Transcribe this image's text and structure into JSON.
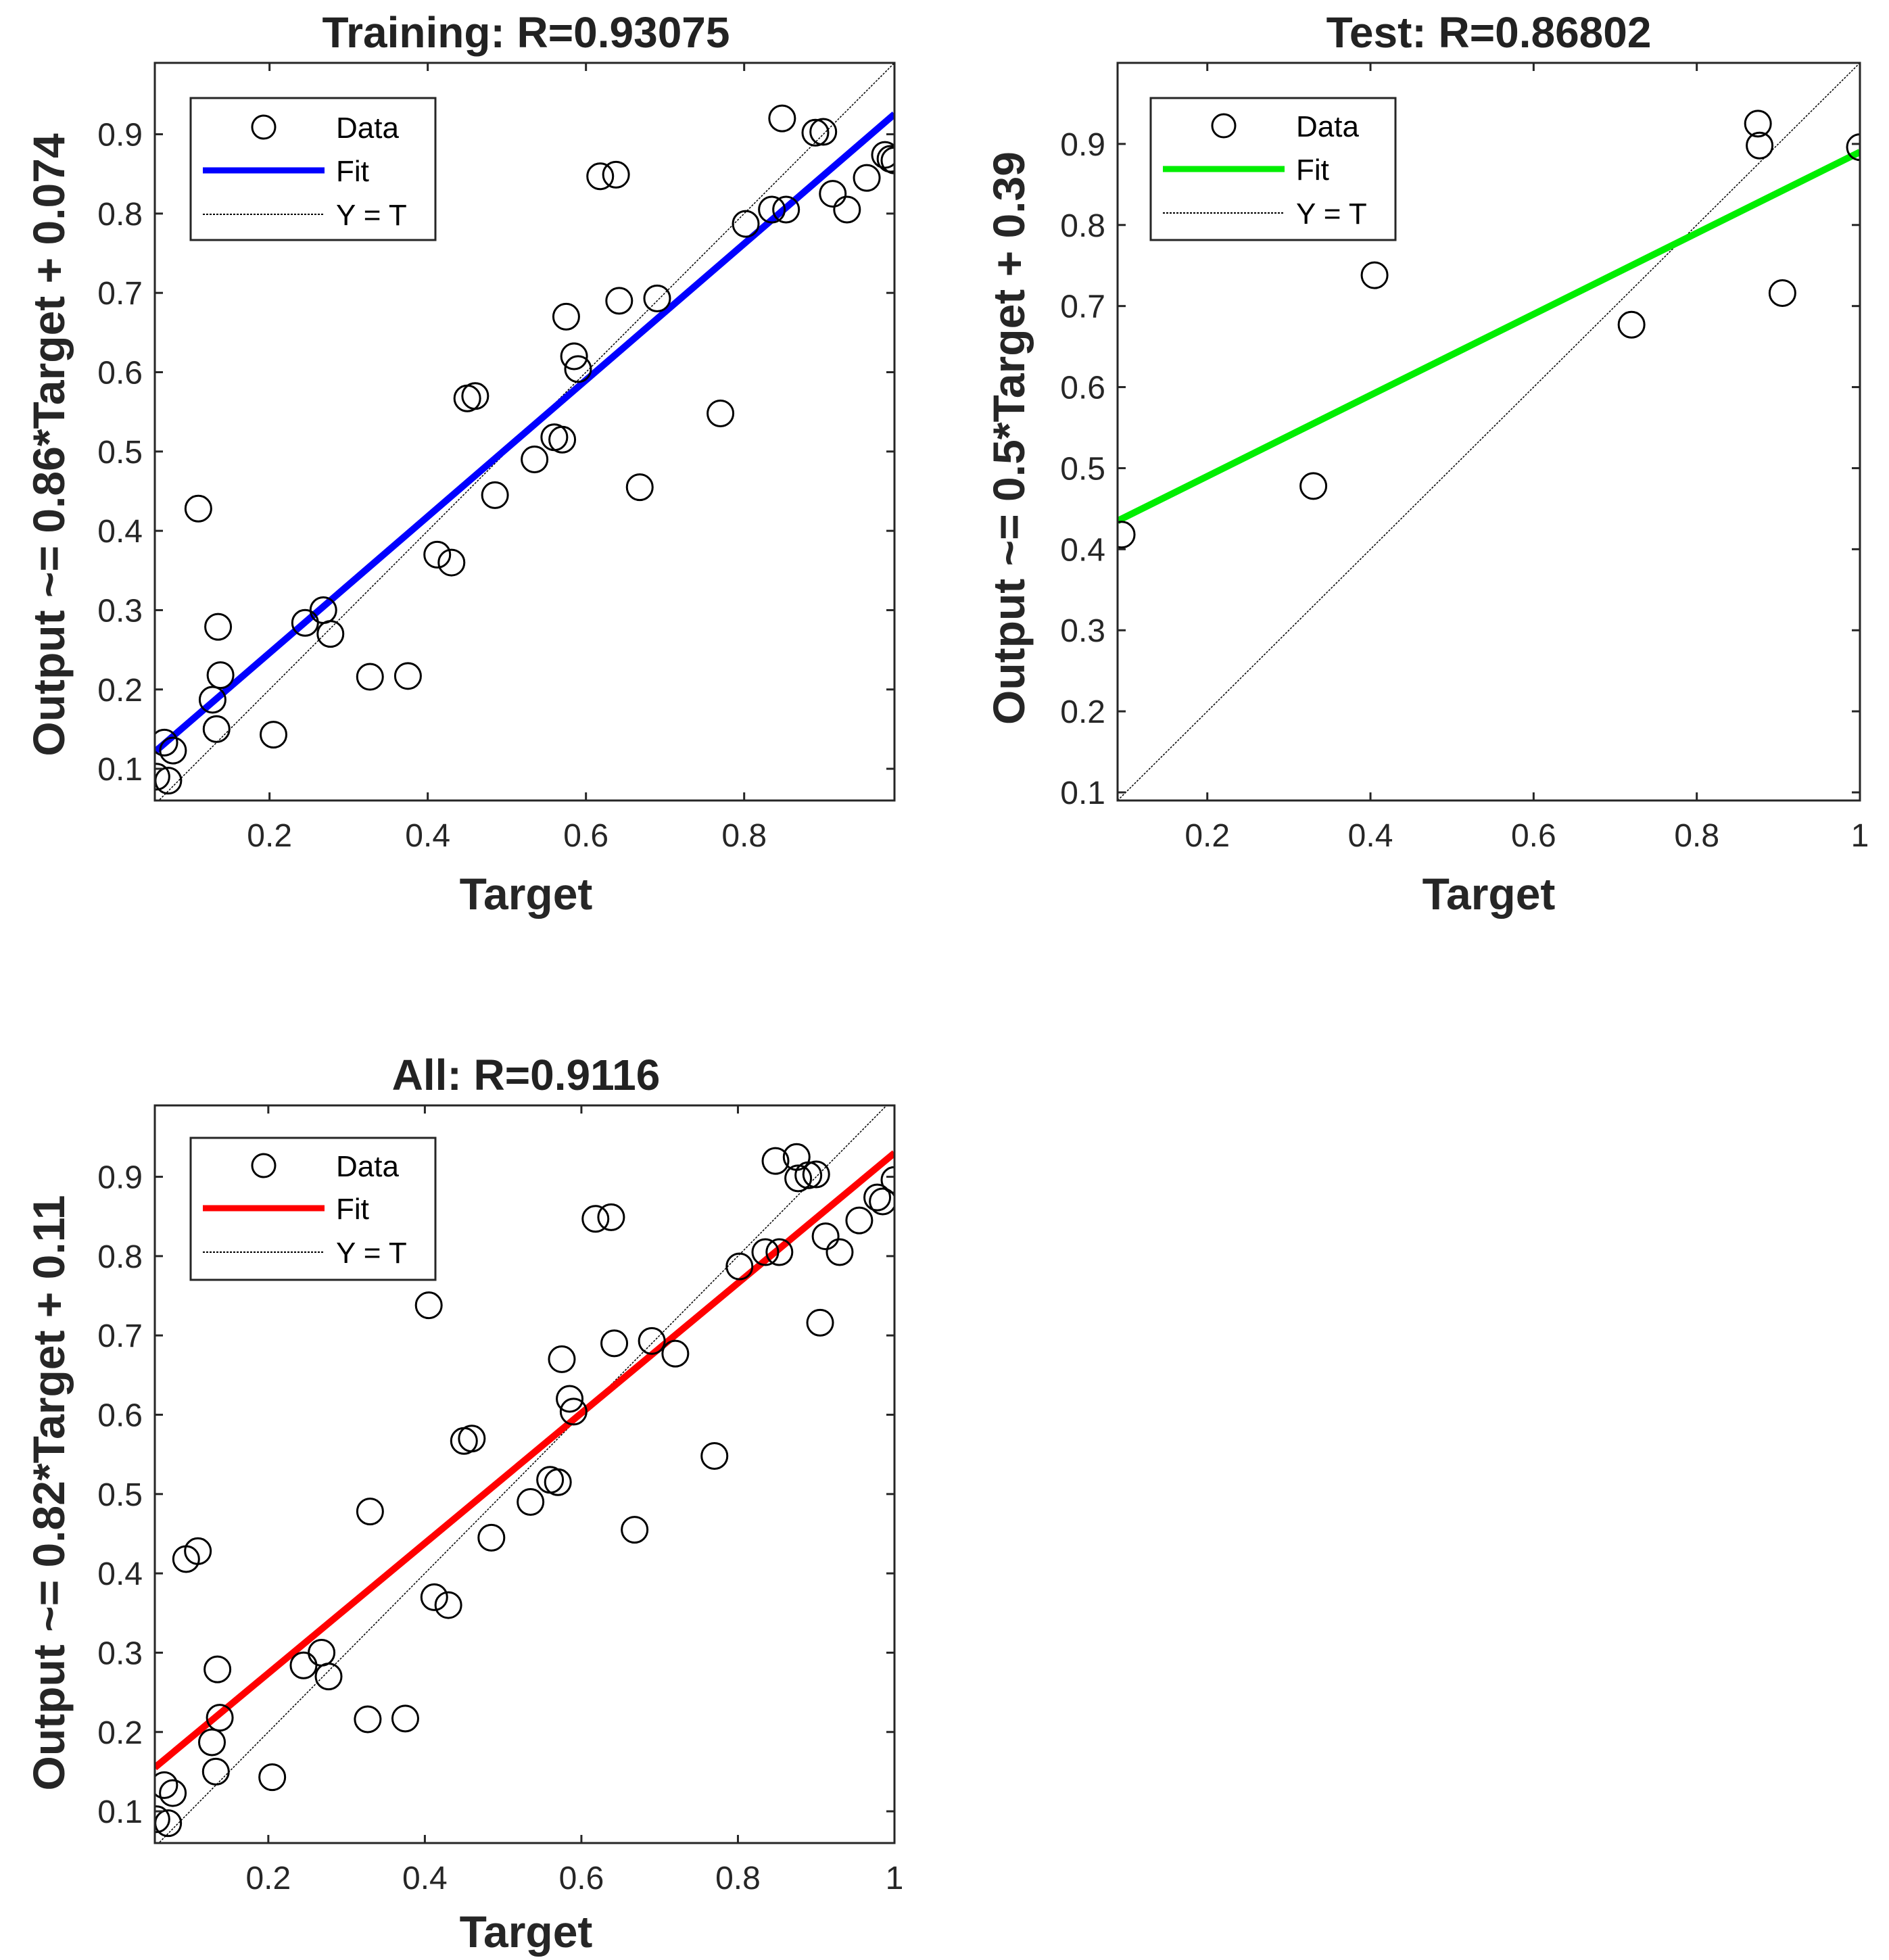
{
  "chart_data": [
    {
      "type": "scatter",
      "title": "Training: R=0.93075",
      "xlabel": "Target",
      "ylabel": "Output ~= 0.86*Target + 0.074",
      "xlim": [
        0.055,
        0.99
      ],
      "ylim": [
        0.06,
        0.99
      ],
      "xticks": [
        0.2,
        0.4,
        0.6,
        0.8
      ],
      "yticks": [
        0.1,
        0.2,
        0.3,
        0.4,
        0.5,
        0.6,
        0.7,
        0.8,
        0.9
      ],
      "xtick_labels": [
        "0.2",
        "0.4",
        "0.6",
        "0.8"
      ],
      "ytick_labels": [
        "0.1",
        "0.2",
        "0.3",
        "0.4",
        "0.5",
        "0.6",
        "0.7",
        "0.8",
        "0.9"
      ],
      "fit": {
        "slope": 0.86,
        "intercept": 0.074,
        "color": "#0000ff"
      },
      "legend": {
        "location": "top-left",
        "entries": [
          "Data",
          "Fit",
          "Y = T"
        ]
      },
      "series": [
        {
          "name": "Data",
          "x": [
            0.057,
            0.067,
            0.072,
            0.078,
            0.11,
            0.128,
            0.133,
            0.135,
            0.138,
            0.205,
            0.245,
            0.268,
            0.277,
            0.327,
            0.375,
            0.412,
            0.43,
            0.45,
            0.46,
            0.485,
            0.535,
            0.56,
            0.57,
            0.575,
            0.585,
            0.59,
            0.618,
            0.638,
            0.642,
            0.668,
            0.69,
            0.77,
            0.802,
            0.835,
            0.848,
            0.853,
            0.89,
            0.9,
            0.912,
            0.93,
            0.955,
            0.978,
            0.985,
            0.99
          ],
          "y": [
            0.09,
            0.133,
            0.085,
            0.123,
            0.428,
            0.187,
            0.15,
            0.279,
            0.218,
            0.143,
            0.284,
            0.3,
            0.27,
            0.216,
            0.217,
            0.37,
            0.36,
            0.567,
            0.57,
            0.445,
            0.49,
            0.518,
            0.515,
            0.67,
            0.62,
            0.604,
            0.847,
            0.849,
            0.69,
            0.455,
            0.693,
            0.548,
            0.787,
            0.805,
            0.92,
            0.805,
            0.902,
            0.903,
            0.825,
            0.805,
            0.845,
            0.874,
            0.869,
            0.867
          ]
        }
      ]
    },
    {
      "type": "scatter",
      "title": "Test: R=0.86802",
      "xlabel": "Target",
      "ylabel": "Output ~= 0.5*Target + 0.39",
      "xlim": [
        0.09,
        1.0
      ],
      "ylim": [
        0.09,
        1.0
      ],
      "xticks": [
        0.2,
        0.4,
        0.6,
        0.8,
        1.0
      ],
      "yticks": [
        0.1,
        0.2,
        0.3,
        0.4,
        0.5,
        0.6,
        0.7,
        0.8,
        0.9
      ],
      "xtick_labels": [
        "0.2",
        "0.4",
        "0.6",
        "0.8",
        "1"
      ],
      "ytick_labels": [
        "0.1",
        "0.2",
        "0.3",
        "0.4",
        "0.5",
        "0.6",
        "0.7",
        "0.8",
        "0.9"
      ],
      "fit": {
        "slope": 0.5,
        "intercept": 0.39,
        "color": "#00ee00"
      },
      "legend": {
        "location": "top-left",
        "entries": [
          "Data",
          "Fit",
          "Y = T"
        ]
      },
      "series": [
        {
          "name": "Data",
          "x": [
            0.095,
            0.33,
            0.405,
            0.72,
            0.875,
            0.877,
            0.905,
            1.0
          ],
          "y": [
            0.418,
            0.478,
            0.738,
            0.677,
            0.925,
            0.898,
            0.716,
            0.896
          ]
        }
      ]
    },
    {
      "type": "scatter",
      "title": "All: R=0.9116",
      "xlabel": "Target",
      "ylabel": "Output ~= 0.82*Target + 0.11",
      "xlim": [
        0.055,
        1.0
      ],
      "ylim": [
        0.06,
        0.99
      ],
      "xticks": [
        0.2,
        0.4,
        0.6,
        0.8,
        1.0
      ],
      "yticks": [
        0.1,
        0.2,
        0.3,
        0.4,
        0.5,
        0.6,
        0.7,
        0.8,
        0.9
      ],
      "xtick_labels": [
        "0.2",
        "0.4",
        "0.6",
        "0.8",
        "1"
      ],
      "ytick_labels": [
        "0.1",
        "0.2",
        "0.3",
        "0.4",
        "0.5",
        "0.6",
        "0.7",
        "0.8",
        "0.9"
      ],
      "fit": {
        "slope": 0.82,
        "intercept": 0.11,
        "color": "#ff0000"
      },
      "legend": {
        "location": "top-left",
        "entries": [
          "Data",
          "Fit",
          "Y = T"
        ]
      },
      "series": [
        {
          "name": "Data",
          "x": [
            0.057,
            0.067,
            0.072,
            0.078,
            0.095,
            0.11,
            0.128,
            0.133,
            0.135,
            0.138,
            0.205,
            0.245,
            0.268,
            0.277,
            0.327,
            0.33,
            0.375,
            0.405,
            0.412,
            0.43,
            0.45,
            0.46,
            0.485,
            0.535,
            0.56,
            0.57,
            0.575,
            0.585,
            0.59,
            0.618,
            0.638,
            0.642,
            0.668,
            0.69,
            0.72,
            0.77,
            0.802,
            0.835,
            0.848,
            0.853,
            0.875,
            0.877,
            0.89,
            0.9,
            0.905,
            0.912,
            0.93,
            0.955,
            0.978,
            0.985,
            1.0
          ],
          "y": [
            0.09,
            0.133,
            0.085,
            0.123,
            0.418,
            0.428,
            0.187,
            0.15,
            0.279,
            0.218,
            0.143,
            0.284,
            0.3,
            0.27,
            0.216,
            0.478,
            0.217,
            0.738,
            0.37,
            0.36,
            0.567,
            0.57,
            0.445,
            0.49,
            0.518,
            0.515,
            0.67,
            0.62,
            0.604,
            0.847,
            0.849,
            0.69,
            0.455,
            0.693,
            0.677,
            0.548,
            0.787,
            0.805,
            0.92,
            0.805,
            0.925,
            0.898,
            0.902,
            0.903,
            0.716,
            0.825,
            0.805,
            0.845,
            0.874,
            0.869,
            0.896
          ]
        }
      ]
    }
  ]
}
